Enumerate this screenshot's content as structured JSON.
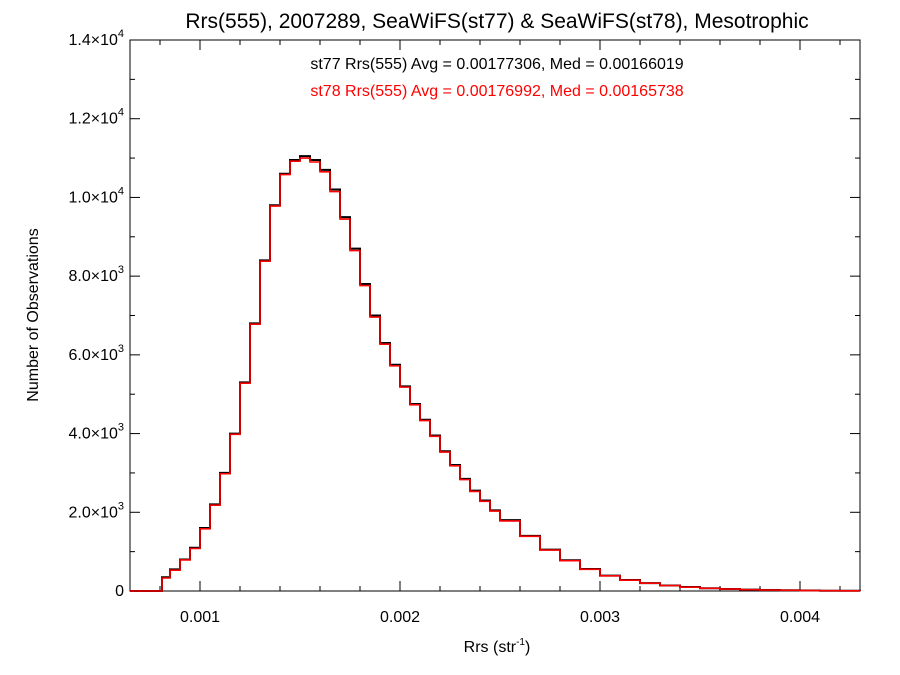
{
  "chart_data": {
    "type": "line",
    "title": "Rrs(555), 2007289, SeaWiFS(st77) & SeaWiFS(st78), Mesotrophic",
    "xlabel_main": "Rrs (str",
    "xlabel_sup": "-1",
    "xlabel_end": ")",
    "ylabel": "Number of Observations",
    "xlim": [
      0.00065,
      0.0043
    ],
    "ylim": [
      0,
      14000
    ],
    "xticks": [
      {
        "value": 0.001,
        "label": "0.001"
      },
      {
        "value": 0.002,
        "label": "0.002"
      },
      {
        "value": 0.003,
        "label": "0.003"
      },
      {
        "value": 0.004,
        "label": "0.004"
      }
    ],
    "yticks": [
      {
        "value": 0,
        "mant": "0",
        "exp": ""
      },
      {
        "value": 2000,
        "mant": "2.0×10",
        "exp": "3"
      },
      {
        "value": 4000,
        "mant": "4.0×10",
        "exp": "3"
      },
      {
        "value": 6000,
        "mant": "6.0×10",
        "exp": "3"
      },
      {
        "value": 8000,
        "mant": "8.0×10",
        "exp": "3"
      },
      {
        "value": 10000,
        "mant": "1.0×10",
        "exp": "4"
      },
      {
        "value": 12000,
        "mant": "1.2×10",
        "exp": "4"
      },
      {
        "value": 14000,
        "mant": "1.4×10",
        "exp": "4"
      }
    ],
    "annotations": [
      "st77 Rrs(555) Avg = 0.00177306, Med = 0.00166019",
      "st78 Rrs(555) Avg = 0.00176992, Med = 0.00165738"
    ],
    "colors": {
      "st77": "#000000",
      "st78": "#ff0000"
    },
    "series": [
      {
        "name": "st77",
        "x": [
          0.00065,
          0.0008,
          0.00081,
          0.00085,
          0.0009,
          0.00095,
          0.001,
          0.00105,
          0.0011,
          0.00115,
          0.0012,
          0.00125,
          0.0013,
          0.00135,
          0.0014,
          0.00145,
          0.0015,
          0.00155,
          0.0016,
          0.00165,
          0.0017,
          0.00175,
          0.0018,
          0.00185,
          0.0019,
          0.00195,
          0.002,
          0.00205,
          0.0021,
          0.00215,
          0.0022,
          0.00225,
          0.0023,
          0.00235,
          0.0024,
          0.00245,
          0.0025,
          0.0026,
          0.0027,
          0.0028,
          0.0029,
          0.003,
          0.0031,
          0.0032,
          0.0033,
          0.0034,
          0.0035,
          0.0036,
          0.0037,
          0.0038,
          0.0039,
          0.004,
          0.0041,
          0.0042,
          0.0043
        ],
        "y": [
          0,
          0,
          350,
          550,
          800,
          1100,
          1600,
          2200,
          3000,
          4000,
          5300,
          6800,
          8400,
          9800,
          10600,
          10950,
          11050,
          10950,
          10700,
          10200,
          9500,
          8700,
          7800,
          7000,
          6300,
          5750,
          5200,
          4750,
          4350,
          3950,
          3550,
          3200,
          2850,
          2550,
          2300,
          2050,
          1800,
          1400,
          1050,
          780,
          560,
          390,
          280,
          200,
          140,
          100,
          70,
          50,
          35,
          25,
          18,
          12,
          8,
          5,
          3
        ]
      },
      {
        "name": "st78",
        "x": [
          0.00065,
          0.0008,
          0.00081,
          0.00085,
          0.0009,
          0.00095,
          0.001,
          0.00105,
          0.0011,
          0.00115,
          0.0012,
          0.00125,
          0.0013,
          0.00135,
          0.0014,
          0.00145,
          0.0015,
          0.00155,
          0.0016,
          0.00165,
          0.0017,
          0.00175,
          0.0018,
          0.00185,
          0.0019,
          0.00195,
          0.002,
          0.00205,
          0.0021,
          0.00215,
          0.0022,
          0.00225,
          0.0023,
          0.00235,
          0.0024,
          0.00245,
          0.0025,
          0.0026,
          0.0027,
          0.0028,
          0.0029,
          0.003,
          0.0031,
          0.0032,
          0.0033,
          0.0034,
          0.0035,
          0.0036,
          0.0037,
          0.0038,
          0.0039,
          0.004,
          0.0041,
          0.0042,
          0.0043
        ],
        "y": [
          0,
          0,
          330,
          530,
          790,
          1080,
          1580,
          2180,
          2980,
          3980,
          5280,
          6780,
          8380,
          9780,
          10580,
          10920,
          11000,
          10900,
          10650,
          10150,
          9450,
          8650,
          7760,
          6960,
          6270,
          5720,
          5180,
          4730,
          4330,
          3930,
          3530,
          3180,
          2830,
          2530,
          2280,
          2030,
          1780,
          1390,
          1040,
          770,
          550,
          385,
          275,
          198,
          138,
          98,
          68,
          48,
          34,
          24,
          17,
          11,
          7,
          4,
          2
        ]
      }
    ]
  }
}
